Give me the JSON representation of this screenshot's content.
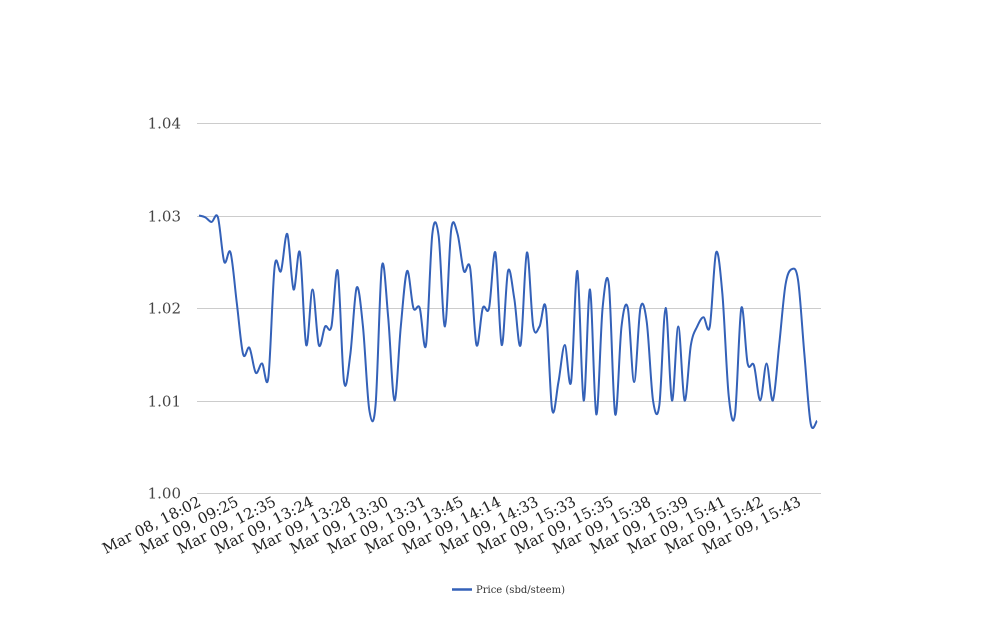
{
  "chart_data": {
    "type": "line",
    "title": "",
    "xlabel": "",
    "ylabel": "",
    "ylim": [
      1.0,
      1.04
    ],
    "y_ticks": [
      "1.00",
      "1.01",
      "1.02",
      "1.03",
      "1.04"
    ],
    "y_tick_values": [
      1.0,
      1.01,
      1.02,
      1.03,
      1.04
    ],
    "x_tick_labels": [
      "Mar 08, 18:02",
      "Mar 09, 09:25",
      "Mar 09, 12:35",
      "Mar 09, 13:24",
      "Mar 09, 13:28",
      "Mar 09, 13:30",
      "Mar 09, 13:31",
      "Mar 09, 13:45",
      "Mar 09, 14:14",
      "Mar 09, 14:33",
      "Mar 09, 15:33",
      "Mar 09, 15:35",
      "Mar 09, 15:38",
      "Mar 09, 15:39",
      "Mar 09, 15:41",
      "Mar 09, 15:42",
      "Mar 09, 15:43"
    ],
    "grid": true,
    "legend": {
      "position": "bottom"
    },
    "series": [
      {
        "name": "Price (sbd/steem)",
        "color": "#3461b8",
        "values": [
          1.03,
          1.0298,
          1.0293,
          1.0298,
          1.025,
          1.026,
          1.0205,
          1.015,
          1.0157,
          1.013,
          1.014,
          1.0125,
          1.0245,
          1.024,
          1.028,
          1.022,
          1.026,
          1.016,
          1.022,
          1.016,
          1.018,
          1.018,
          1.024,
          1.012,
          1.015,
          1.0222,
          1.018,
          1.009,
          1.0095,
          1.0245,
          1.019,
          1.01,
          1.018,
          1.024,
          1.02,
          1.02,
          1.016,
          1.028,
          1.0278,
          1.018,
          1.0285,
          1.028,
          1.024,
          1.0243,
          1.016,
          1.02,
          1.02,
          1.026,
          1.016,
          1.024,
          1.021,
          1.016,
          1.026,
          1.018,
          1.018,
          1.02,
          1.009,
          1.012,
          1.016,
          1.012,
          1.024,
          1.01,
          1.022,
          1.0085,
          1.02,
          1.0225,
          1.0085,
          1.018,
          1.02,
          1.012,
          1.02,
          1.0185,
          1.01,
          1.0095,
          1.02,
          1.01,
          1.018,
          1.01,
          1.016,
          1.018,
          1.019,
          1.018,
          1.026,
          1.0215,
          1.0105,
          1.0085,
          1.02,
          1.014,
          1.0138,
          1.01,
          1.014,
          1.01,
          1.016,
          1.0225,
          1.0242,
          1.023,
          1.015,
          1.0075,
          1.0078
        ]
      }
    ]
  }
}
